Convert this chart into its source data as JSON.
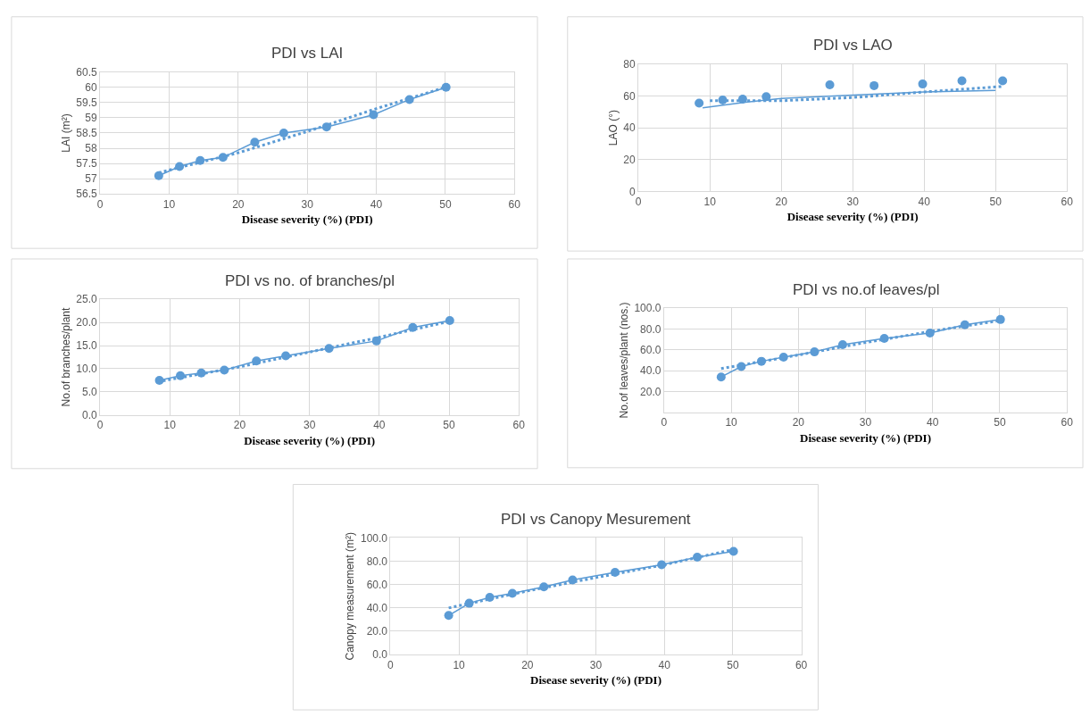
{
  "chart_data": [
    {
      "type": "line",
      "title": "PDI vs LAI",
      "xlabel": "Disease severity (%) (PDI)",
      "ylabel": "LAI (m²)",
      "xlim": [
        0,
        60
      ],
      "xticks": [
        0,
        10,
        20,
        30,
        40,
        50,
        60
      ],
      "ylim": [
        56.5,
        60.5
      ],
      "yticks": [
        56.5,
        57,
        57.5,
        58,
        58.5,
        59,
        59.5,
        60,
        60.5
      ],
      "grid": true,
      "series": [
        {
          "color": "#5b9bd5",
          "marker": "circle",
          "line_style": "solid",
          "x": [
            8.5,
            11.5,
            14.5,
            17.8,
            22.4,
            26.6,
            32.8,
            39.6,
            44.8,
            50.1
          ],
          "values": [
            57.1,
            57.4,
            57.6,
            57.7,
            58.2,
            58.5,
            58.7,
            59.1,
            59.6,
            60.0
          ]
        },
        {
          "color": "#5b9bd5",
          "marker": "none",
          "line_style": "dotted",
          "x": [
            8.5,
            20,
            30,
            40,
            50
          ],
          "values": [
            57.2,
            57.85,
            58.55,
            59.3,
            60.0
          ]
        }
      ]
    },
    {
      "type": "scatter",
      "title": "PDI vs LAO",
      "xlabel": "Disease severity (%) (PDI)",
      "ylabel": "LAO (°)",
      "xlim": [
        0,
        60
      ],
      "xticks": [
        0,
        10,
        20,
        30,
        40,
        50,
        60
      ],
      "ylim": [
        0,
        80
      ],
      "yticks": [
        0,
        20,
        40,
        60,
        80
      ],
      "grid": true,
      "series": [
        {
          "color": "#5b9bd5",
          "marker": "circle",
          "x": [
            8.5,
            11.8,
            14.6,
            17.9,
            26.8,
            33.0,
            39.8,
            45.3,
            51.0
          ],
          "values": [
            55.5,
            57.5,
            58,
            59.5,
            67,
            66.5,
            67.5,
            69.5,
            69.5
          ]
        },
        {
          "type": "line",
          "color": "#5b9bd5",
          "marker": "none",
          "line_style": "solid",
          "x": [
            9,
            15,
            20,
            30,
            40,
            50
          ],
          "values": [
            52.5,
            56,
            58.5,
            60.5,
            62.5,
            63.5
          ]
        },
        {
          "type": "line",
          "color": "#5b9bd5",
          "marker": "none",
          "line_style": "dotted",
          "x": [
            10,
            20,
            30,
            40,
            51
          ],
          "values": [
            57,
            57,
            59,
            62.5,
            66
          ]
        }
      ]
    },
    {
      "type": "line",
      "title": "PDI vs no. of branches/pl",
      "xlabel": "Disease severity (%) (PDI)",
      "ylabel": "No.of branches/plant",
      "xlim": [
        0,
        60
      ],
      "xticks": [
        0,
        10,
        20,
        30,
        40,
        50,
        60
      ],
      "ylim": [
        0,
        25
      ],
      "yticks": [
        {
          "value": 0,
          "label": "0.0"
        },
        {
          "value": 5,
          "label": "5.0"
        },
        {
          "value": 10,
          "label": "10.0"
        },
        {
          "value": 15,
          "label": "15.0"
        },
        {
          "value": 20,
          "label": "20.0"
        },
        {
          "value": 25,
          "label": "25.0"
        }
      ],
      "grid": true,
      "series": [
        {
          "color": "#5b9bd5",
          "marker": "circle",
          "line_style": "solid",
          "x": [
            8.5,
            11.5,
            14.5,
            17.8,
            22.4,
            26.6,
            32.8,
            39.6,
            44.8,
            50.1
          ],
          "values": [
            7.5,
            8.5,
            9.1,
            9.7,
            11.7,
            12.8,
            14.4,
            16.0,
            18.9,
            20.4
          ]
        },
        {
          "color": "#5b9bd5",
          "marker": "none",
          "line_style": "dotted",
          "x": [
            9,
            20,
            30,
            40,
            50
          ],
          "values": [
            7.4,
            10.4,
            13.6,
            16.8,
            20.2
          ]
        }
      ]
    },
    {
      "type": "line",
      "title": "PDI vs no.of leaves/pl",
      "xlabel": "Disease severity (%) (PDI)",
      "ylabel": "No.of leaves/plant (nos.)",
      "xlim": [
        0,
        60
      ],
      "xticks": [
        0,
        10,
        20,
        30,
        40,
        50,
        60
      ],
      "ylim": [
        0,
        100
      ],
      "yticks": [
        {
          "value": 0,
          "label": null
        },
        {
          "value": 20,
          "label": "20.0"
        },
        {
          "value": 40,
          "label": "40.0"
        },
        {
          "value": 60,
          "label": "60.0"
        },
        {
          "value": 80,
          "label": "80.0"
        },
        {
          "value": 100,
          "label": "100.0"
        }
      ],
      "grid": true,
      "series": [
        {
          "color": "#5b9bd5",
          "marker": "circle",
          "line_style": "solid",
          "x": [
            8.5,
            11.5,
            14.5,
            17.8,
            22.4,
            26.6,
            32.8,
            39.6,
            44.8,
            50.1
          ],
          "values": [
            34,
            44,
            49,
            53,
            58,
            65,
            71,
            76,
            84,
            89
          ]
        },
        {
          "color": "#5b9bd5",
          "marker": "none",
          "line_style": "dotted",
          "x": [
            8.5,
            20,
            30,
            40,
            50
          ],
          "values": [
            42,
            55,
            67,
            78,
            88
          ]
        }
      ]
    },
    {
      "type": "line",
      "title": "PDI vs Canopy Mesurement",
      "xlabel": "Disease severity (%) (PDI)",
      "ylabel": "Canopy measurement (m²)",
      "xlim": [
        0,
        60
      ],
      "xticks": [
        0,
        10,
        20,
        30,
        40,
        50,
        60
      ],
      "ylim": [
        0,
        100
      ],
      "yticks": [
        {
          "value": 0,
          "label": "0.0"
        },
        {
          "value": 20,
          "label": "20.0"
        },
        {
          "value": 40,
          "label": "40.0"
        },
        {
          "value": 60,
          "label": "60.0"
        },
        {
          "value": 80,
          "label": "80.0"
        },
        {
          "value": 100,
          "label": "100.0"
        }
      ],
      "grid": true,
      "series": [
        {
          "color": "#5b9bd5",
          "marker": "circle",
          "line_style": "solid",
          "x": [
            8.5,
            11.5,
            14.5,
            17.8,
            22.4,
            26.6,
            32.8,
            39.6,
            44.8,
            50.1
          ],
          "values": [
            33.5,
            44,
            49,
            52.5,
            58,
            64,
            70.5,
            77,
            83.5,
            88.5
          ]
        },
        {
          "color": "#5b9bd5",
          "marker": "none",
          "line_style": "dotted",
          "x": [
            8.5,
            20,
            30,
            40,
            50
          ],
          "values": [
            40,
            54.5,
            66,
            77,
            90
          ]
        }
      ]
    }
  ]
}
